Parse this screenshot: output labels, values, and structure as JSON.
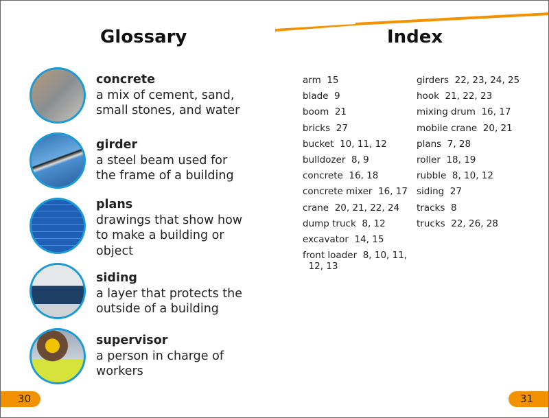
{
  "glossary": {
    "title": "Glossary",
    "entries": [
      {
        "term": "concrete",
        "definition": "a mix of cement, sand, small stones, and water",
        "image": "pouring-concrete"
      },
      {
        "term": "girder",
        "definition": "a steel beam used for the frame of a building",
        "image": "steel-girder"
      },
      {
        "term": "plans",
        "definition": "drawings that show how to make a building or object",
        "image": "blueprint"
      },
      {
        "term": "siding",
        "definition": "a layer that protects the outside of a building",
        "image": "house-siding"
      },
      {
        "term": "supervisor",
        "definition": "a person in charge of workers",
        "image": "worker-hard-hat"
      }
    ]
  },
  "index": {
    "title": "Index",
    "left": [
      "arm  15",
      "blade  9",
      "boom  21",
      "bricks  27",
      "bucket  10, 11, 12",
      "bulldozer  8, 9",
      "concrete  16, 18",
      "concrete mixer  16, 17",
      "crane  20, 21, 22, 24",
      "dump truck  8, 12",
      "excavator  14, 15",
      "front loader  8, 10, 11,\n  12, 13"
    ],
    "right": [
      "girders  22, 23, 24, 25",
      "hook  21, 22, 23",
      "mixing drum  16, 17",
      "mobile crane  20, 21",
      "plans  7, 28",
      "roller  18, 19",
      "rubble  8, 10, 12",
      "siding  27",
      "tracks  8",
      "trucks  22, 26, 28"
    ]
  },
  "pages": {
    "left": "30",
    "right": "31"
  },
  "colors": {
    "accent": "#f39200",
    "circle_border": "#1b9ad6"
  }
}
